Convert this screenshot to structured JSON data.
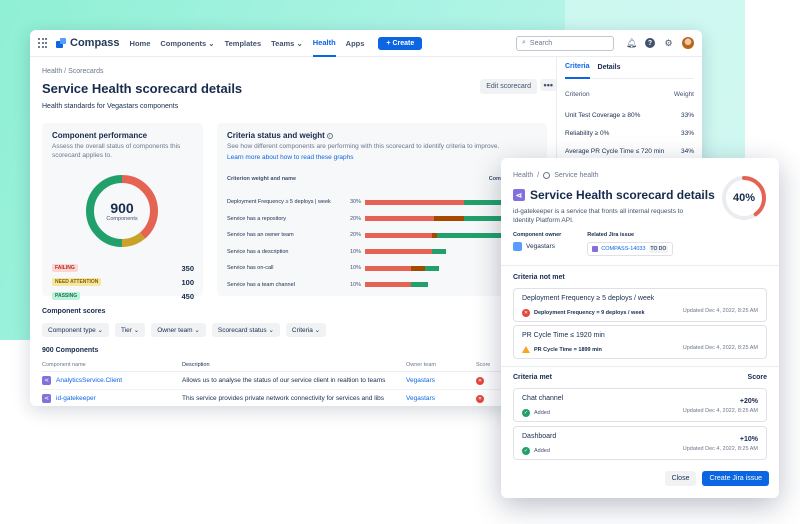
{
  "nav": {
    "logo": "Compass",
    "items": [
      "Home",
      "Components",
      "Templates",
      "Teams",
      "Health",
      "Apps"
    ],
    "create": "Create",
    "search_placeholder": "Search"
  },
  "page": {
    "breadcrumb": "Health / Scorecards",
    "title": "Service Health scorecard details",
    "subtitle": "Health standards for Vegastars components",
    "edit_button": "Edit scorecard",
    "more": "•••"
  },
  "performance": {
    "title": "Component performance",
    "description": "Assess the overall status of components this scorecard applies to.",
    "total": "900",
    "total_label": "Components",
    "statuses": [
      {
        "label": "FAILING",
        "value": "350",
        "bg": "#ffd5d2",
        "fg": "#ae2e24"
      },
      {
        "label": "NEED ATTENTION",
        "value": "100",
        "bg": "#f8e6a0",
        "fg": "#7f5f01"
      },
      {
        "label": "PASSING",
        "value": "450",
        "bg": "#baf3db",
        "fg": "#216e4e"
      }
    ],
    "donut_colors": {
      "failing": "#e56352",
      "attention": "#c9a227",
      "passing": "#22a06b"
    }
  },
  "criteria_chart": {
    "title": "Criteria status and weight",
    "description": "See how different components are performing with this scorecard to identify criteria to improve.",
    "link": "Learn more about how to read these graphs",
    "col_name": "Criterion weight and name",
    "col_status": "Component status",
    "rows": [
      {
        "name": "Deployment Frequency ≥ 5 deploys | week",
        "weight": "30%",
        "fail": 0.56,
        "mid": 0.0,
        "pass": 0.44
      },
      {
        "name": "Service has a repository",
        "weight": "20%",
        "fail": 0.39,
        "mid": 0.17,
        "pass": 0.44
      },
      {
        "name": "Service has an owner team",
        "weight": "20%",
        "fail": 0.38,
        "mid": 0.03,
        "pass": 0.59
      },
      {
        "name": "Service has a description",
        "weight": "10%",
        "fail": 0.38,
        "mid": 0.0,
        "pass": 0.08
      },
      {
        "name": "Service has on-call",
        "weight": "10%",
        "fail": 0.26,
        "mid": 0.08,
        "pass": 0.08
      },
      {
        "name": "Service has a team channel",
        "weight": "10%",
        "fail": 0.26,
        "mid": 0.0,
        "pass": 0.1
      }
    ]
  },
  "scores": {
    "title": "Component scores",
    "filters": [
      "Component type",
      "Tier",
      "Owner team",
      "Scorecard status",
      "Criteria"
    ],
    "count": "900 Components",
    "headers": [
      "Component name",
      "Description",
      "Owner team",
      "Score"
    ],
    "rows": [
      {
        "name": "AnalyticsService.Client",
        "desc": "Allows us to analyse the status of our service client in realtion to teams",
        "owner": "Vegastars"
      },
      {
        "name": "id-gatekeeper",
        "desc": "This service provides private network connectivity for services and libs",
        "owner": "Vegastars"
      }
    ]
  },
  "side": {
    "tabs": [
      "Criteria",
      "Details"
    ],
    "col_criterion": "Criterion",
    "col_weight": "Weight",
    "rows": [
      {
        "name": "Unit Test Coverage ≥ 80%",
        "weight": "33%"
      },
      {
        "name": "Reliability ≥ 0%",
        "weight": "33%"
      },
      {
        "name": "Average PR Cycle Time ≤ 720 min",
        "weight": "34%"
      }
    ]
  },
  "modal": {
    "breadcrumb_root": "Health",
    "breadcrumb_leaf": "Service health",
    "title": "Service Health scorecard details",
    "description": "id-gatekeeper is a service that fronts all internal requests to Identity Platform API.",
    "score": "40%",
    "score_value": 0.4,
    "owner_label": "Component owner",
    "owner": "Vegastars",
    "jira_label": "Related Jira issue",
    "jira_key": "COMPASS-14033",
    "jira_status": "TO DO",
    "not_met_title": "Criteria not met",
    "not_met": [
      {
        "title": "Deployment Frequency ≥ 5 deploys / week",
        "detail": "Deployment Frequency = 9 deploys / week",
        "updated": "Updated Dec 4, 2022, 8:25 AM"
      },
      {
        "title": "PR Cycle Time ≤ 1920 min",
        "detail": "PR Cycle Time = 1899 min",
        "updated": "Updated Dec 4, 2022, 8:25 AM"
      }
    ],
    "met_title": "Criteria met",
    "score_label": "Score",
    "met": [
      {
        "title": "Chat channel",
        "status": "Added",
        "score": "+20%",
        "updated": "Updated Dec 4, 2022, 8:25 AM"
      },
      {
        "title": "Dashboard",
        "status": "Added",
        "score": "+10%",
        "updated": "Updated Dec 4, 2022, 8:25 AM"
      }
    ],
    "close": "Close",
    "create_issue": "Create Jira issue"
  }
}
